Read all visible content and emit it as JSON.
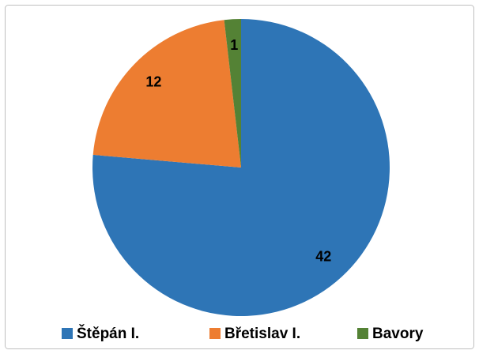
{
  "chart_data": {
    "type": "pie",
    "categories": [
      "Štěpán I.",
      "Břetislav I.",
      "Bavory"
    ],
    "values": [
      42,
      12,
      1
    ],
    "colors": [
      "#2e75b6",
      "#ed7d31",
      "#548235"
    ],
    "legend": "bottom"
  }
}
